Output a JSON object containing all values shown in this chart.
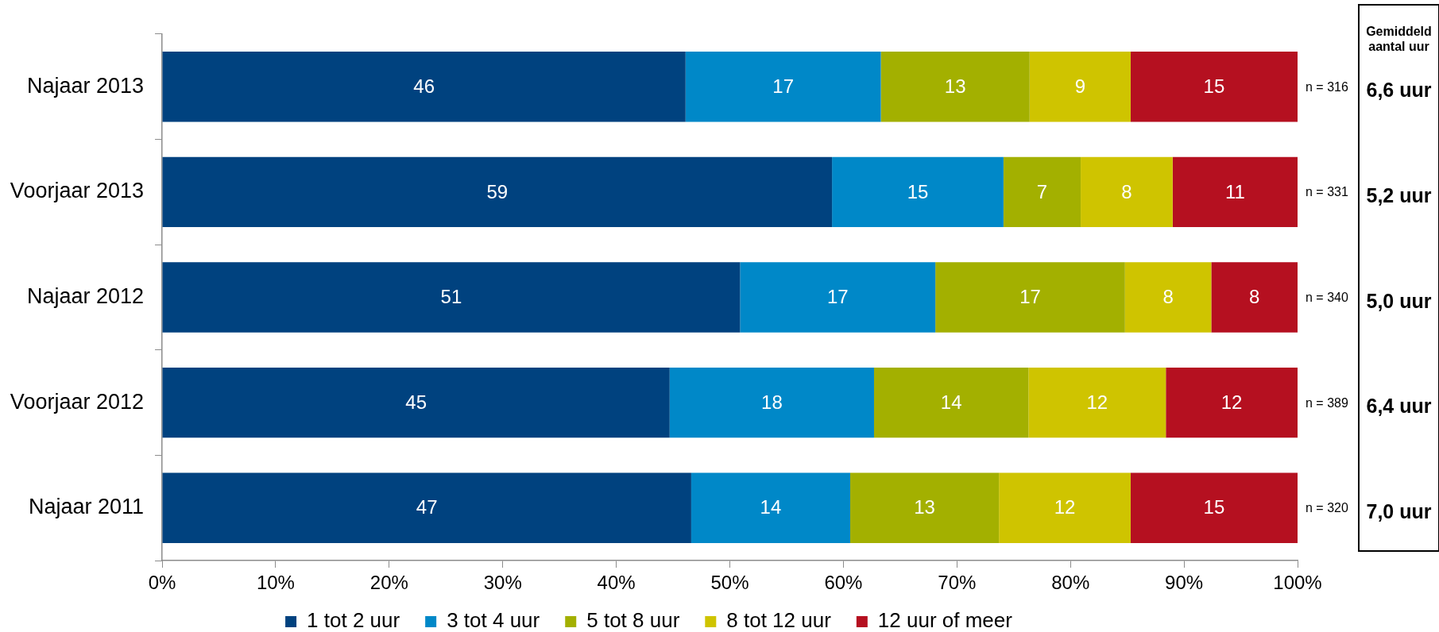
{
  "chart_data": {
    "type": "bar",
    "orientation": "horizontal",
    "stacked": true,
    "categories": [
      "Najaar 2013",
      "Voorjaar 2013",
      "Najaar 2012",
      "Voorjaar 2012",
      "Najaar 2011"
    ],
    "series": [
      {
        "name": "1 tot 2 uur",
        "color": "#00427f",
        "values": [
          46.1,
          59.0,
          50.9,
          44.7,
          46.6
        ],
        "value_labels": [
          "46",
          "59",
          "51",
          "45",
          "47"
        ]
      },
      {
        "name": "3 tot 4 uur",
        "color": "#0088c8",
        "values": [
          17.2,
          15.1,
          17.2,
          18.0,
          14.0
        ],
        "value_labels": [
          "17",
          "15",
          "17",
          "18",
          "14"
        ]
      },
      {
        "name": "5 tot 8 uur",
        "color": "#a3b000",
        "values": [
          13.1,
          6.8,
          16.7,
          13.6,
          13.1
        ],
        "value_labels": [
          "13",
          "7",
          "17",
          "14",
          "13"
        ]
      },
      {
        "name": "8 tot 12 uur",
        "color": "#cfc400",
        "values": [
          8.9,
          8.1,
          7.6,
          12.1,
          11.6
        ],
        "value_labels": [
          "9",
          "8",
          "8",
          "12",
          "12"
        ]
      },
      {
        "name": "12 uur of meer",
        "color": "#b51020",
        "values": [
          14.7,
          11.0,
          7.6,
          11.6,
          14.7
        ],
        "value_labels": [
          "15",
          "11",
          "8",
          "12",
          "15"
        ]
      }
    ],
    "xlim": [
      0,
      100
    ],
    "xticks": [
      {
        "value": 0,
        "label": "0%"
      },
      {
        "value": 10,
        "label": "10%"
      },
      {
        "value": 20,
        "label": "20%"
      },
      {
        "value": 30,
        "label": "30%"
      },
      {
        "value": 40,
        "label": "40%"
      },
      {
        "value": 50,
        "label": "50%"
      },
      {
        "value": 60,
        "label": "60%"
      },
      {
        "value": 70,
        "label": "70%"
      },
      {
        "value": 80,
        "label": "80%"
      },
      {
        "value": 90,
        "label": "90%"
      },
      {
        "value": 100,
        "label": "100%"
      }
    ],
    "legend": "bottom",
    "annotations": [
      "n = 316",
      "n = 331",
      "n = 340",
      "n = 389",
      "n = 320",
      "Gemiddeld aantal uur",
      "6,6 uur",
      "5,2 uur",
      "5,0 uur",
      "6,4 uur",
      "7,0 uur"
    ]
  }
}
